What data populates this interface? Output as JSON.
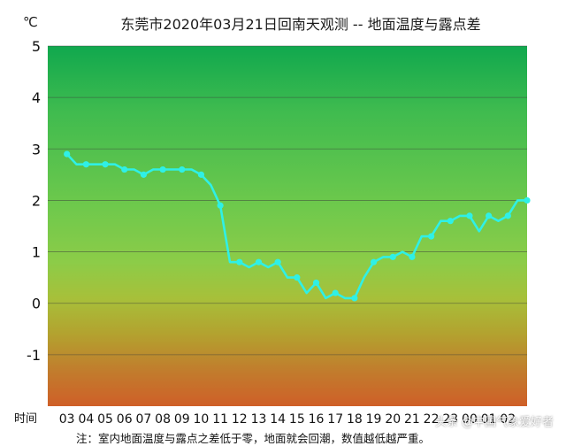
{
  "chart_data": {
    "type": "line",
    "title": "东莞市2020年03月21日回南天观测 -- 地面温度与露点差",
    "unit": "℃",
    "xlabel": "时间",
    "note": "注：室内地面温度与露点之差低于零，地面就会回潮，数值越低越严重。",
    "categories": [
      "03",
      "04",
      "05",
      "06",
      "07",
      "08",
      "09",
      "10",
      "11",
      "12",
      "13",
      "14",
      "15",
      "16",
      "17",
      "18",
      "19",
      "20",
      "21",
      "22",
      "23",
      "00",
      "01",
      "02"
    ],
    "yticks": [
      5,
      4,
      3,
      2,
      1,
      0,
      -1
    ],
    "ylim": [
      -2,
      5
    ],
    "grid": true,
    "line_color": "#2ff0e6",
    "x": [
      2.0,
      2.5,
      3.0,
      3.5,
      4.0,
      4.5,
      5.0,
      5.5,
      6.0,
      6.5,
      7.0,
      7.5,
      8.0,
      8.5,
      9.0,
      9.5,
      10.0,
      10.5,
      11.0,
      11.5,
      12.0,
      12.5,
      13.0,
      13.5,
      14.0,
      14.5,
      15.0,
      15.5,
      16.0,
      16.5,
      17.0,
      17.5,
      18.0,
      18.5,
      19.0,
      19.5,
      20.0,
      20.5,
      21.0,
      21.5,
      22.0,
      22.5,
      23.0,
      23.5,
      24.0,
      24.5,
      25.0,
      25.5,
      26.0
    ],
    "values": [
      2.9,
      2.7,
      2.7,
      2.7,
      2.7,
      2.7,
      2.6,
      2.6,
      2.5,
      2.6,
      2.6,
      2.6,
      2.6,
      2.6,
      2.5,
      2.3,
      1.9,
      0.8,
      0.8,
      0.7,
      0.8,
      0.7,
      0.8,
      0.5,
      0.5,
      0.2,
      0.4,
      0.1,
      0.2,
      0.1,
      0.1,
      0.5,
      0.8,
      0.9,
      0.9,
      1.0,
      0.9,
      1.3,
      1.3,
      1.6,
      1.6,
      1.7,
      1.7,
      1.4,
      1.7,
      1.6,
      1.7,
      2.0,
      2.0
    ],
    "markers": [
      1,
      0,
      1,
      0,
      1,
      0,
      1,
      0,
      1,
      0,
      1,
      0,
      1,
      0,
      1,
      0,
      1,
      0,
      1,
      0,
      1,
      0,
      1,
      0,
      1,
      0,
      1,
      0,
      1,
      0,
      1,
      0,
      1,
      0,
      1,
      0,
      1,
      0,
      1,
      0,
      1,
      0,
      1,
      0,
      1,
      0,
      1,
      0,
      1
    ]
  },
  "watermark": "头条 @中国气象爱好者"
}
